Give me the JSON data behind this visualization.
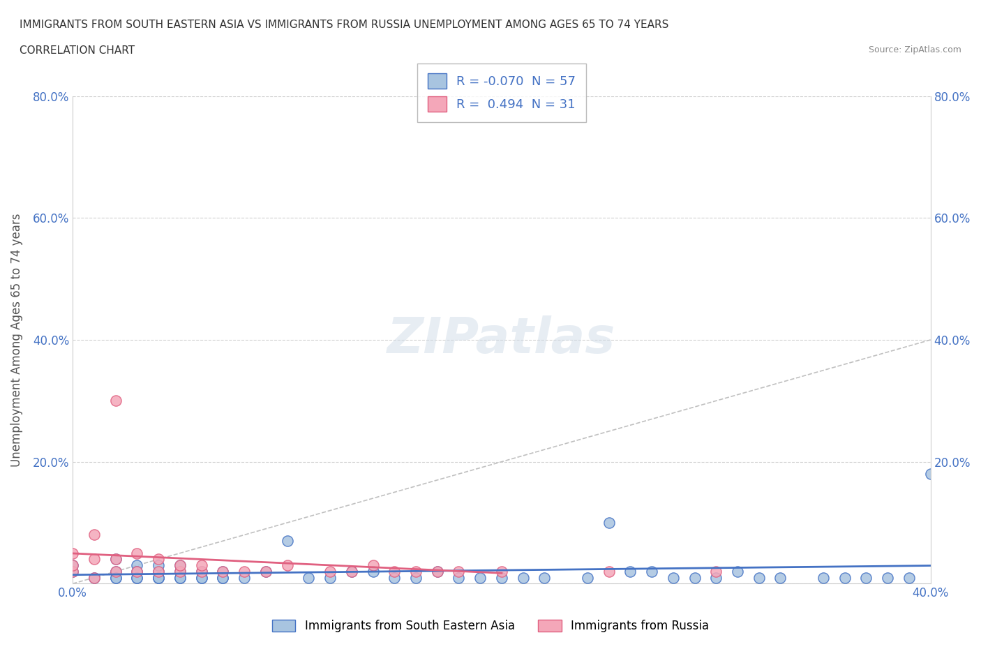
{
  "title_line1": "IMMIGRANTS FROM SOUTH EASTERN ASIA VS IMMIGRANTS FROM RUSSIA UNEMPLOYMENT AMONG AGES 65 TO 74 YEARS",
  "title_line2": "CORRELATION CHART",
  "source_text": "Source: ZipAtlas.com",
  "xlabel": "",
  "ylabel": "Unemployment Among Ages 65 to 74 years",
  "xlim": [
    0.0,
    0.4
  ],
  "ylim": [
    0.0,
    0.8
  ],
  "xticks": [
    0.0,
    0.05,
    0.1,
    0.15,
    0.2,
    0.25,
    0.3,
    0.35,
    0.4
  ],
  "xticklabels": [
    "0.0%",
    "",
    "",
    "",
    "",
    "",
    "",
    "",
    "40.0%"
  ],
  "yticks": [
    0.0,
    0.2,
    0.4,
    0.6,
    0.8
  ],
  "yticklabels": [
    "",
    "20.0%",
    "40.0%",
    "60.0%",
    "80.0%"
  ],
  "legend1_label": "R = -0.070  N = 57",
  "legend2_label": "R =  0.494  N = 31",
  "blue_color": "#a8c4e0",
  "pink_color": "#f4a7b9",
  "blue_line_color": "#4472c4",
  "pink_line_color": "#e06080",
  "diag_line_color": "#c0c0c0",
  "background_color": "#ffffff",
  "watermark": "ZIPatlas",
  "blue_scatter_x": [
    0.0,
    0.0,
    0.02,
    0.02,
    0.02,
    0.03,
    0.03,
    0.03,
    0.04,
    0.04,
    0.04,
    0.04,
    0.05,
    0.05,
    0.05,
    0.06,
    0.06,
    0.07,
    0.07,
    0.08,
    0.09,
    0.1,
    0.11,
    0.12,
    0.13,
    0.14,
    0.15,
    0.16,
    0.17,
    0.18,
    0.19,
    0.2,
    0.21,
    0.22,
    0.24,
    0.25,
    0.26,
    0.27,
    0.28,
    0.29,
    0.3,
    0.31,
    0.32,
    0.33,
    0.35,
    0.36,
    0.37,
    0.38,
    0.39,
    0.4,
    0.01,
    0.02,
    0.03,
    0.04,
    0.05,
    0.06,
    0.07
  ],
  "blue_scatter_y": [
    0.02,
    0.03,
    0.01,
    0.04,
    0.02,
    0.01,
    0.03,
    0.02,
    0.01,
    0.02,
    0.03,
    0.01,
    0.02,
    0.01,
    0.03,
    0.02,
    0.01,
    0.01,
    0.02,
    0.01,
    0.02,
    0.07,
    0.01,
    0.01,
    0.02,
    0.02,
    0.01,
    0.01,
    0.02,
    0.01,
    0.01,
    0.01,
    0.01,
    0.01,
    0.01,
    0.1,
    0.02,
    0.02,
    0.01,
    0.01,
    0.01,
    0.02,
    0.01,
    0.01,
    0.01,
    0.01,
    0.01,
    0.01,
    0.01,
    0.18,
    0.01,
    0.01,
    0.01,
    0.01,
    0.01,
    0.01,
    0.01
  ],
  "pink_scatter_x": [
    0.0,
    0.0,
    0.0,
    0.01,
    0.01,
    0.01,
    0.02,
    0.02,
    0.02,
    0.03,
    0.03,
    0.04,
    0.04,
    0.05,
    0.05,
    0.06,
    0.06,
    0.07,
    0.08,
    0.09,
    0.1,
    0.12,
    0.13,
    0.14,
    0.15,
    0.16,
    0.17,
    0.18,
    0.2,
    0.25,
    0.3
  ],
  "pink_scatter_y": [
    0.02,
    0.03,
    0.05,
    0.01,
    0.04,
    0.08,
    0.02,
    0.3,
    0.04,
    0.02,
    0.05,
    0.02,
    0.04,
    0.02,
    0.03,
    0.02,
    0.03,
    0.02,
    0.02,
    0.02,
    0.03,
    0.02,
    0.02,
    0.03,
    0.02,
    0.02,
    0.02,
    0.02,
    0.02,
    0.02,
    0.02
  ],
  "bottom_legend_blue": "Immigrants from South Eastern Asia",
  "bottom_legend_pink": "Immigrants from Russia"
}
